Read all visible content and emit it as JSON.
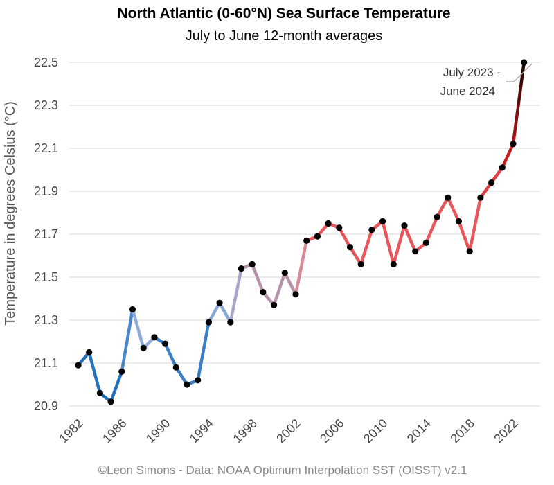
{
  "chart_data": {
    "type": "line",
    "title": "North Atlantic (0-60°N) Sea Surface Temperature",
    "subtitle": "July to June 12-month averages",
    "ylabel": "Temperature in degrees Celsius (°C)",
    "xlabel": "",
    "ylim": [
      20.9,
      22.5
    ],
    "yticks": [
      "20.9",
      "21.1",
      "21.3",
      "21.5",
      "21.7",
      "21.9",
      "22.1",
      "22.3",
      "22.5"
    ],
    "xticks": [
      "1982",
      "1986",
      "1990",
      "1994",
      "1998",
      "2002",
      "2006",
      "2010",
      "2014",
      "2018",
      "2022"
    ],
    "grid": true,
    "x": [
      1982,
      1983,
      1984,
      1985,
      1986,
      1987,
      1988,
      1989,
      1990,
      1991,
      1992,
      1993,
      1994,
      1995,
      1996,
      1997,
      1998,
      1999,
      2000,
      2001,
      2002,
      2003,
      2004,
      2005,
      2006,
      2007,
      2008,
      2009,
      2010,
      2011,
      2012,
      2013,
      2014,
      2015,
      2016,
      2017,
      2018,
      2019,
      2020,
      2021,
      2022,
      2023
    ],
    "values": [
      21.09,
      21.15,
      20.96,
      20.92,
      21.06,
      21.35,
      21.17,
      21.22,
      21.19,
      21.08,
      21.0,
      21.02,
      21.29,
      21.38,
      21.29,
      21.54,
      21.56,
      21.43,
      21.37,
      21.52,
      21.42,
      21.67,
      21.69,
      21.75,
      21.73,
      21.64,
      21.56,
      21.72,
      21.76,
      21.56,
      21.74,
      21.62,
      21.66,
      21.78,
      21.87,
      21.76,
      21.62,
      21.87,
      21.94,
      22.01,
      22.12,
      22.5
    ],
    "annotation": {
      "text_line1": "July 2023 -",
      "text_line2": "June 2024"
    },
    "source": "©Leon Simons - Data: NOAA Optimum Interpolation SST (OISST) v2.1"
  }
}
